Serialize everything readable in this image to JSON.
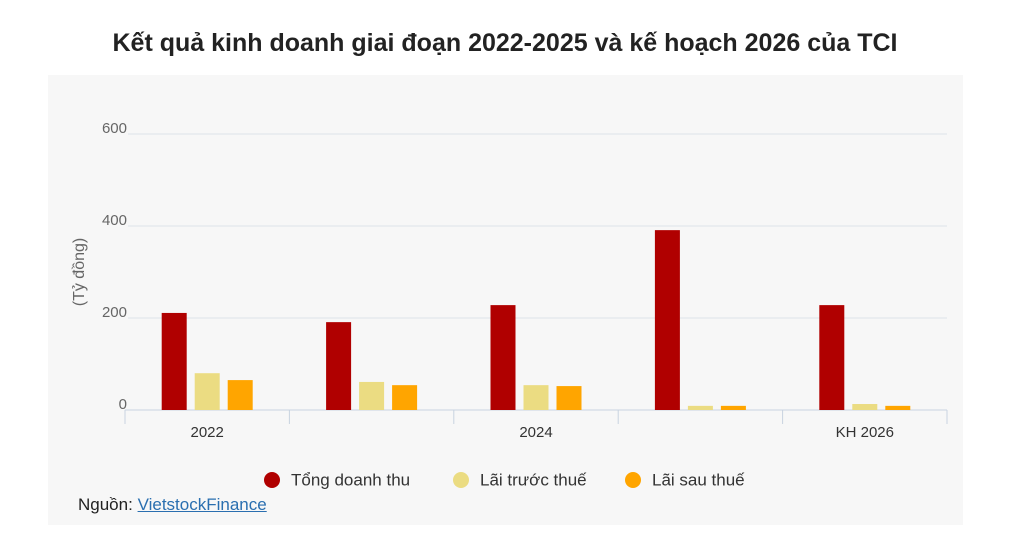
{
  "chart_data": {
    "type": "bar",
    "title": "Kết quả kinh doanh giai đoạn 2022-2025 và kế hoạch 2026 của TCI",
    "y_label": "(Tỷ đồng)",
    "categories": [
      "2022",
      null,
      "2024",
      null,
      "KH 2026"
    ],
    "series": [
      {
        "name": "Tổng doanh thu",
        "color": "#b00000",
        "values": [
          211,
          191,
          228,
          391,
          228
        ]
      },
      {
        "name": "Lãi trước thuế",
        "color": "#ebdc82",
        "values": [
          80,
          61,
          54,
          9,
          13
        ]
      },
      {
        "name": "Lãi sau thuế",
        "color": "#ffa500",
        "values": [
          65,
          54,
          52,
          9,
          9
        ]
      }
    ],
    "ylim": [
      0,
      600
    ],
    "yticks": [
      0,
      200,
      400,
      600
    ],
    "grid": true,
    "source": {
      "label": "Nguồn:",
      "link": "VietstockFinance"
    }
  }
}
